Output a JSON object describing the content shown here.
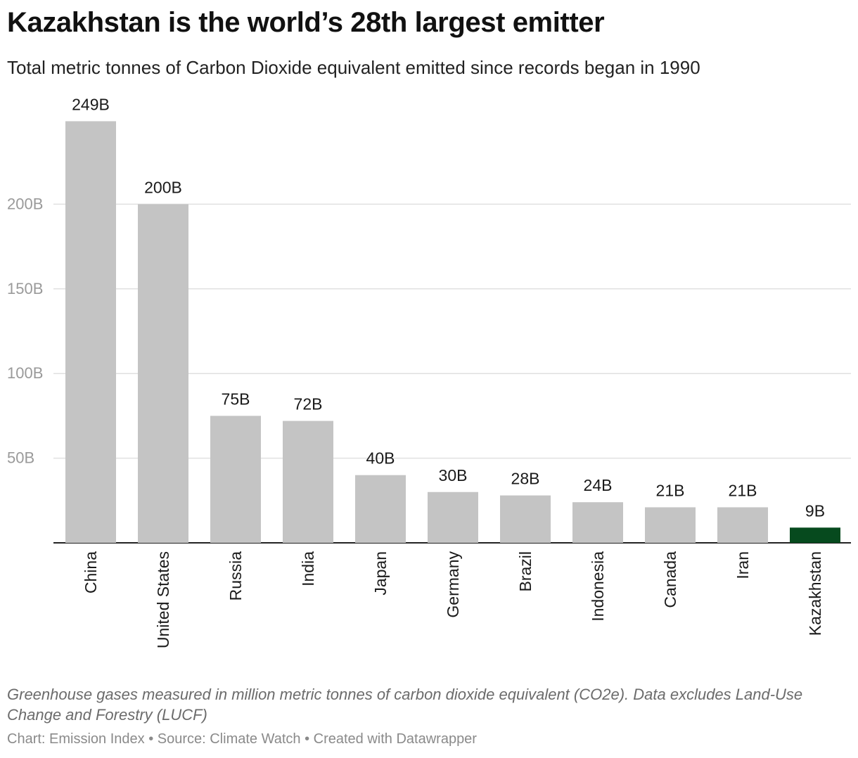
{
  "header": {
    "title": "Kazakhstan is the world’s 28th largest emitter",
    "subtitle": "Total metric tonnes of Carbon Dioxide equivalent emitted since records began in 1990"
  },
  "footer": {
    "notes": "Greenhouse gases measured in million metric tonnes of carbon dioxide equivalent (CO2e). Data excludes Land-Use Change and Forestry (LUCF)",
    "byline": "Chart: Emission Index • Source: Climate Watch • Created with Datawrapper"
  },
  "chart_data": {
    "type": "bar",
    "title": "Kazakhstan is the world’s 28th largest emitter",
    "subtitle": "Total metric tonnes of Carbon Dioxide equivalent emitted since records began in 1990",
    "xlabel": "",
    "ylabel": "",
    "categories": [
      "China",
      "United States",
      "Russia",
      "India",
      "Japan",
      "Germany",
      "Brazil",
      "Indonesia",
      "Canada",
      "Iran",
      "Kazakhstan"
    ],
    "values": [
      249,
      200,
      75,
      72,
      40,
      30,
      28,
      24,
      21,
      21,
      9
    ],
    "value_labels": [
      "249B",
      "200B",
      "75B",
      "72B",
      "40B",
      "30B",
      "28B",
      "24B",
      "21B",
      "21B",
      "9B"
    ],
    "ylim": [
      0,
      260
    ],
    "y_ticks": [
      50,
      100,
      150,
      200
    ],
    "y_tick_labels": [
      "50B",
      "100B",
      "150B",
      "200B"
    ],
    "grid": true,
    "legend": "none",
    "colors": {
      "default_bar": "#c4c4c4",
      "highlight_bar": "#064a1e",
      "gridline": "#e0e0e0",
      "baseline": "#222222",
      "tick_label": "#9a9a9a",
      "value_label": "#1a1a1a"
    },
    "highlight_category": "Kazakhstan"
  }
}
